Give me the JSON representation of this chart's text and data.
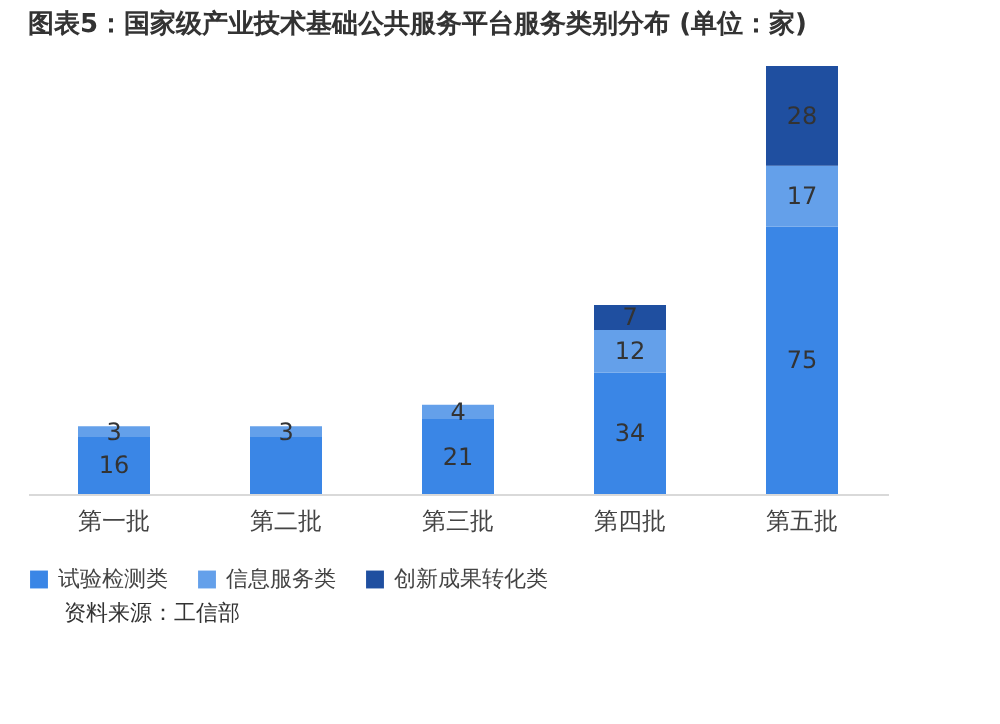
{
  "chart_data": {
    "type": "bar",
    "title": "图表5：国家级产业技术基础公共服务平台服务类别分布 (单位：家)",
    "categories": [
      "第一批",
      "第二批",
      "第三批",
      "第四批",
      "第五批"
    ],
    "stacked": true,
    "legend": "bottom",
    "grid": false,
    "series": [
      {
        "name": "试验检测类",
        "color": "#3a86e6",
        "values": [
          16,
          16,
          21,
          34,
          75
        ],
        "value_labels": [
          "16",
          null,
          "21",
          "34",
          "75"
        ]
      },
      {
        "name": "信息服务类",
        "color": "#64a0ea",
        "values": [
          3,
          3,
          4,
          12,
          17
        ],
        "value_labels": [
          "3",
          "3",
          "4",
          "12",
          "17"
        ]
      },
      {
        "name": "创新成果转化类",
        "color": "#1f4fa0",
        "values": [
          null,
          null,
          null,
          7,
          28
        ],
        "value_labels": [
          null,
          null,
          null,
          "7",
          "28"
        ]
      }
    ],
    "annotations": [
      "资料来源：工信部"
    ]
  }
}
